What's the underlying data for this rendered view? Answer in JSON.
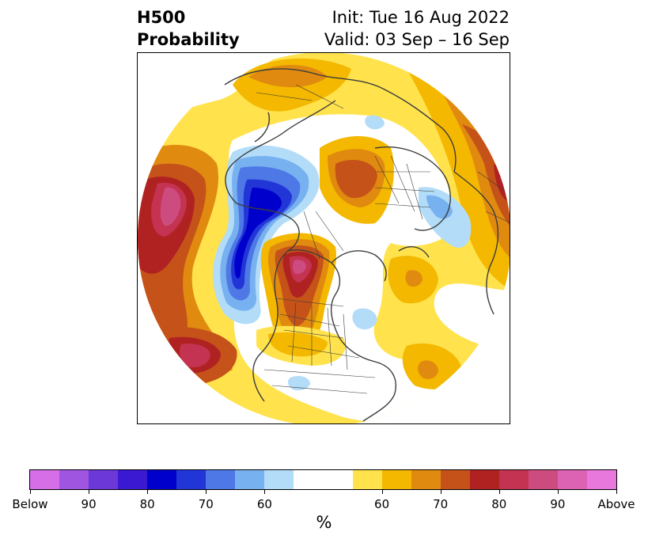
{
  "title": {
    "left_line1": "H500",
    "left_line2": "Probability",
    "right_line1": "Init: Tue 16 Aug 2022",
    "right_line2": "Valid: 03 Sep – 16 Sep"
  },
  "colorbar": {
    "unit": "%",
    "segments": [
      "#d66ee8",
      "#9f55e0",
      "#6c38d8",
      "#3b18d2",
      "#0000cc",
      "#2236d8",
      "#4d78e6",
      "#78b1f0",
      "#b2dcf8",
      "#ffffff",
      "#ffe24c",
      "#f4b800",
      "#e08a10",
      "#c55218",
      "#b02222",
      "#c43452",
      "#cc4c80",
      "#dc62b4",
      "#e878dc"
    ],
    "tick_labels": [
      "Below",
      "90",
      "80",
      "70",
      "60",
      "60",
      "70",
      "80",
      "90",
      "Above"
    ]
  },
  "map": {
    "projection": "polar stereographic (north)",
    "colors": {
      "blue_light": "#b2dcf8",
      "blue_2": "#78b1f0",
      "blue_3": "#4d78e6",
      "blue_4": "#2236d8",
      "blue_5": "#0000cc",
      "yellow": "#ffe24c",
      "gold": "#f4b800",
      "orange": "#e08a10",
      "rust": "#c55218",
      "red": "#b02222",
      "rose": "#c43452",
      "pink": "#cc4c80",
      "coast": "#3c3c3c"
    }
  }
}
